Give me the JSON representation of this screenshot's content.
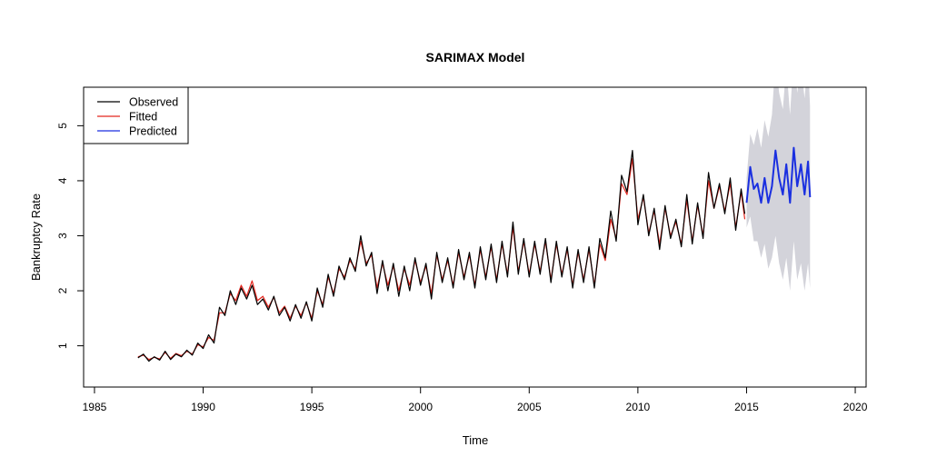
{
  "chart_data": {
    "type": "line",
    "title": "SARIMAX Model",
    "xlabel": "Time",
    "ylabel": "Bankruptcy Rate",
    "xlim": [
      1984.5,
      2020.5
    ],
    "ylim": [
      0.25,
      5.7
    ],
    "x_ticks": [
      1985,
      1990,
      1995,
      2000,
      2005,
      2010,
      2015,
      2020
    ],
    "x_tick_labels": [
      "1985",
      "1990",
      "1995",
      "2000",
      "2005",
      "2010",
      "2015",
      "2020"
    ],
    "y_ticks": [
      1,
      2,
      3,
      4,
      5
    ],
    "y_tick_labels": [
      "1",
      "2",
      "3",
      "4",
      "5"
    ],
    "grid": false,
    "legend_position": "top-left",
    "legend": [
      {
        "label": "Observed",
        "color": "#000000"
      },
      {
        "label": "Fitted",
        "color": "#e3261e"
      },
      {
        "label": "Predicted",
        "color": "#1a2fe0"
      }
    ],
    "series": [
      {
        "name": "Observed",
        "color": "#000000",
        "x": [
          1987.0,
          1987.25,
          1987.5,
          1987.75,
          1988.0,
          1988.25,
          1988.5,
          1988.75,
          1989.0,
          1989.25,
          1989.5,
          1989.75,
          1990.0,
          1990.25,
          1990.5,
          1990.75,
          1991.0,
          1991.25,
          1991.5,
          1991.75,
          1992.0,
          1992.25,
          1992.5,
          1992.75,
          1993.0,
          1993.25,
          1993.5,
          1993.75,
          1994.0,
          1994.25,
          1994.5,
          1994.75,
          1995.0,
          1995.25,
          1995.5,
          1995.75,
          1996.0,
          1996.25,
          1996.5,
          1996.75,
          1997.0,
          1997.25,
          1997.5,
          1997.75,
          1998.0,
          1998.25,
          1998.5,
          1998.75,
          1999.0,
          1999.25,
          1999.5,
          1999.75,
          2000.0,
          2000.25,
          2000.5,
          2000.75,
          2001.0,
          2001.25,
          2001.5,
          2001.75,
          2002.0,
          2002.25,
          2002.5,
          2002.75,
          2003.0,
          2003.25,
          2003.5,
          2003.75,
          2004.0,
          2004.25,
          2004.5,
          2004.75,
          2005.0,
          2005.25,
          2005.5,
          2005.75,
          2006.0,
          2006.25,
          2006.5,
          2006.75,
          2007.0,
          2007.25,
          2007.5,
          2007.75,
          2008.0,
          2008.25,
          2008.5,
          2008.75,
          2009.0,
          2009.25,
          2009.5,
          2009.75,
          2010.0,
          2010.25,
          2010.5,
          2010.75,
          2011.0,
          2011.25,
          2011.5,
          2011.75,
          2012.0,
          2012.25,
          2012.5,
          2012.75,
          2013.0,
          2013.25,
          2013.5,
          2013.75,
          2014.0,
          2014.25,
          2014.5,
          2014.75,
          2014.92
        ],
        "values": [
          0.78,
          0.85,
          0.72,
          0.8,
          0.74,
          0.9,
          0.75,
          0.85,
          0.8,
          0.92,
          0.83,
          1.05,
          0.95,
          1.2,
          1.05,
          1.7,
          1.55,
          2.0,
          1.75,
          2.05,
          1.85,
          2.1,
          1.75,
          1.85,
          1.65,
          1.9,
          1.55,
          1.7,
          1.45,
          1.75,
          1.5,
          1.8,
          1.45,
          2.05,
          1.7,
          2.3,
          1.9,
          2.45,
          2.2,
          2.6,
          2.35,
          3.0,
          2.45,
          2.7,
          1.95,
          2.55,
          2.0,
          2.5,
          1.9,
          2.45,
          2.0,
          2.6,
          2.1,
          2.5,
          1.85,
          2.7,
          2.15,
          2.6,
          2.05,
          2.75,
          2.2,
          2.7,
          2.05,
          2.8,
          2.2,
          2.85,
          2.15,
          2.9,
          2.25,
          3.25,
          2.3,
          2.95,
          2.25,
          2.9,
          2.3,
          2.95,
          2.15,
          2.9,
          2.25,
          2.8,
          2.05,
          2.75,
          2.15,
          2.8,
          2.05,
          2.95,
          2.6,
          3.45,
          2.9,
          4.1,
          3.8,
          4.55,
          3.2,
          3.75,
          3.0,
          3.5,
          2.75,
          3.55,
          2.95,
          3.3,
          2.8,
          3.75,
          2.85,
          3.6,
          2.95,
          4.15,
          3.5,
          3.95,
          3.4,
          4.05,
          3.1,
          3.85,
          3.4
        ]
      },
      {
        "name": "Fitted",
        "color": "#e3261e",
        "x": [
          1987.0,
          1987.25,
          1987.5,
          1987.75,
          1988.0,
          1988.25,
          1988.5,
          1988.75,
          1989.0,
          1989.25,
          1989.5,
          1989.75,
          1990.0,
          1990.25,
          1990.5,
          1990.75,
          1991.0,
          1991.25,
          1991.5,
          1991.75,
          1992.0,
          1992.25,
          1992.5,
          1992.75,
          1993.0,
          1993.25,
          1993.5,
          1993.75,
          1994.0,
          1994.25,
          1994.5,
          1994.75,
          1995.0,
          1995.25,
          1995.5,
          1995.75,
          1996.0,
          1996.25,
          1996.5,
          1996.75,
          1997.0,
          1997.25,
          1997.5,
          1997.75,
          1998.0,
          1998.25,
          1998.5,
          1998.75,
          1999.0,
          1999.25,
          1999.5,
          1999.75,
          2000.0,
          2000.25,
          2000.5,
          2000.75,
          2001.0,
          2001.25,
          2001.5,
          2001.75,
          2002.0,
          2002.25,
          2002.5,
          2002.75,
          2003.0,
          2003.25,
          2003.5,
          2003.75,
          2004.0,
          2004.25,
          2004.5,
          2004.75,
          2005.0,
          2005.25,
          2005.5,
          2005.75,
          2006.0,
          2006.25,
          2006.5,
          2006.75,
          2007.0,
          2007.25,
          2007.5,
          2007.75,
          2008.0,
          2008.25,
          2008.5,
          2008.75,
          2009.0,
          2009.25,
          2009.5,
          2009.75,
          2010.0,
          2010.25,
          2010.5,
          2010.75,
          2011.0,
          2011.25,
          2011.5,
          2011.75,
          2012.0,
          2012.25,
          2012.5,
          2012.75,
          2013.0,
          2013.25,
          2013.5,
          2013.75,
          2014.0,
          2014.25,
          2014.5,
          2014.75,
          2014.92
        ],
        "values": [
          0.8,
          0.83,
          0.75,
          0.79,
          0.76,
          0.88,
          0.77,
          0.86,
          0.82,
          0.9,
          0.85,
          1.02,
          0.98,
          1.15,
          1.1,
          1.6,
          1.6,
          1.95,
          1.82,
          2.1,
          1.9,
          2.18,
          1.82,
          1.9,
          1.7,
          1.88,
          1.6,
          1.72,
          1.5,
          1.72,
          1.55,
          1.78,
          1.5,
          2.0,
          1.75,
          2.25,
          1.95,
          2.4,
          2.25,
          2.55,
          2.4,
          2.9,
          2.5,
          2.65,
          2.05,
          2.5,
          2.1,
          2.45,
          2.0,
          2.4,
          2.1,
          2.55,
          2.15,
          2.45,
          1.95,
          2.65,
          2.2,
          2.55,
          2.1,
          2.7,
          2.25,
          2.65,
          2.1,
          2.75,
          2.25,
          2.8,
          2.2,
          2.85,
          2.3,
          3.15,
          2.35,
          2.9,
          2.3,
          2.85,
          2.35,
          2.9,
          2.2,
          2.85,
          2.3,
          2.75,
          2.1,
          2.7,
          2.2,
          2.75,
          2.1,
          2.85,
          2.55,
          3.3,
          2.95,
          3.95,
          3.75,
          4.4,
          3.3,
          3.7,
          3.05,
          3.45,
          2.85,
          3.5,
          3.0,
          3.25,
          2.85,
          3.65,
          2.9,
          3.55,
          3.0,
          4.0,
          3.5,
          3.9,
          3.45,
          3.95,
          3.15,
          3.8,
          3.3
        ]
      },
      {
        "name": "Predicted",
        "color": "#1a2fe0",
        "x": [
          2015.0,
          2015.17,
          2015.33,
          2015.5,
          2015.67,
          2015.83,
          2016.0,
          2016.17,
          2016.33,
          2016.5,
          2016.67,
          2016.83,
          2017.0,
          2017.17,
          2017.33,
          2017.5,
          2017.67,
          2017.83,
          2017.92
        ],
        "values": [
          3.6,
          4.25,
          3.85,
          3.95,
          3.6,
          4.05,
          3.6,
          3.9,
          4.55,
          4.05,
          3.75,
          4.3,
          3.6,
          4.6,
          3.9,
          4.3,
          3.75,
          4.35,
          3.7
        ],
        "lower": [
          3.15,
          3.35,
          2.9,
          2.9,
          2.6,
          2.85,
          2.4,
          2.6,
          3.0,
          2.5,
          2.2,
          2.6,
          2.0,
          2.9,
          2.2,
          2.5,
          2.0,
          2.5,
          2.05
        ],
        "upper": [
          4.05,
          4.85,
          4.65,
          4.95,
          4.6,
          5.1,
          4.8,
          5.2,
          6.2,
          5.6,
          5.3,
          6.1,
          5.2,
          6.3,
          5.6,
          6.1,
          5.5,
          6.2,
          5.35
        ]
      }
    ],
    "prediction_band_color": "#d3d3da"
  }
}
